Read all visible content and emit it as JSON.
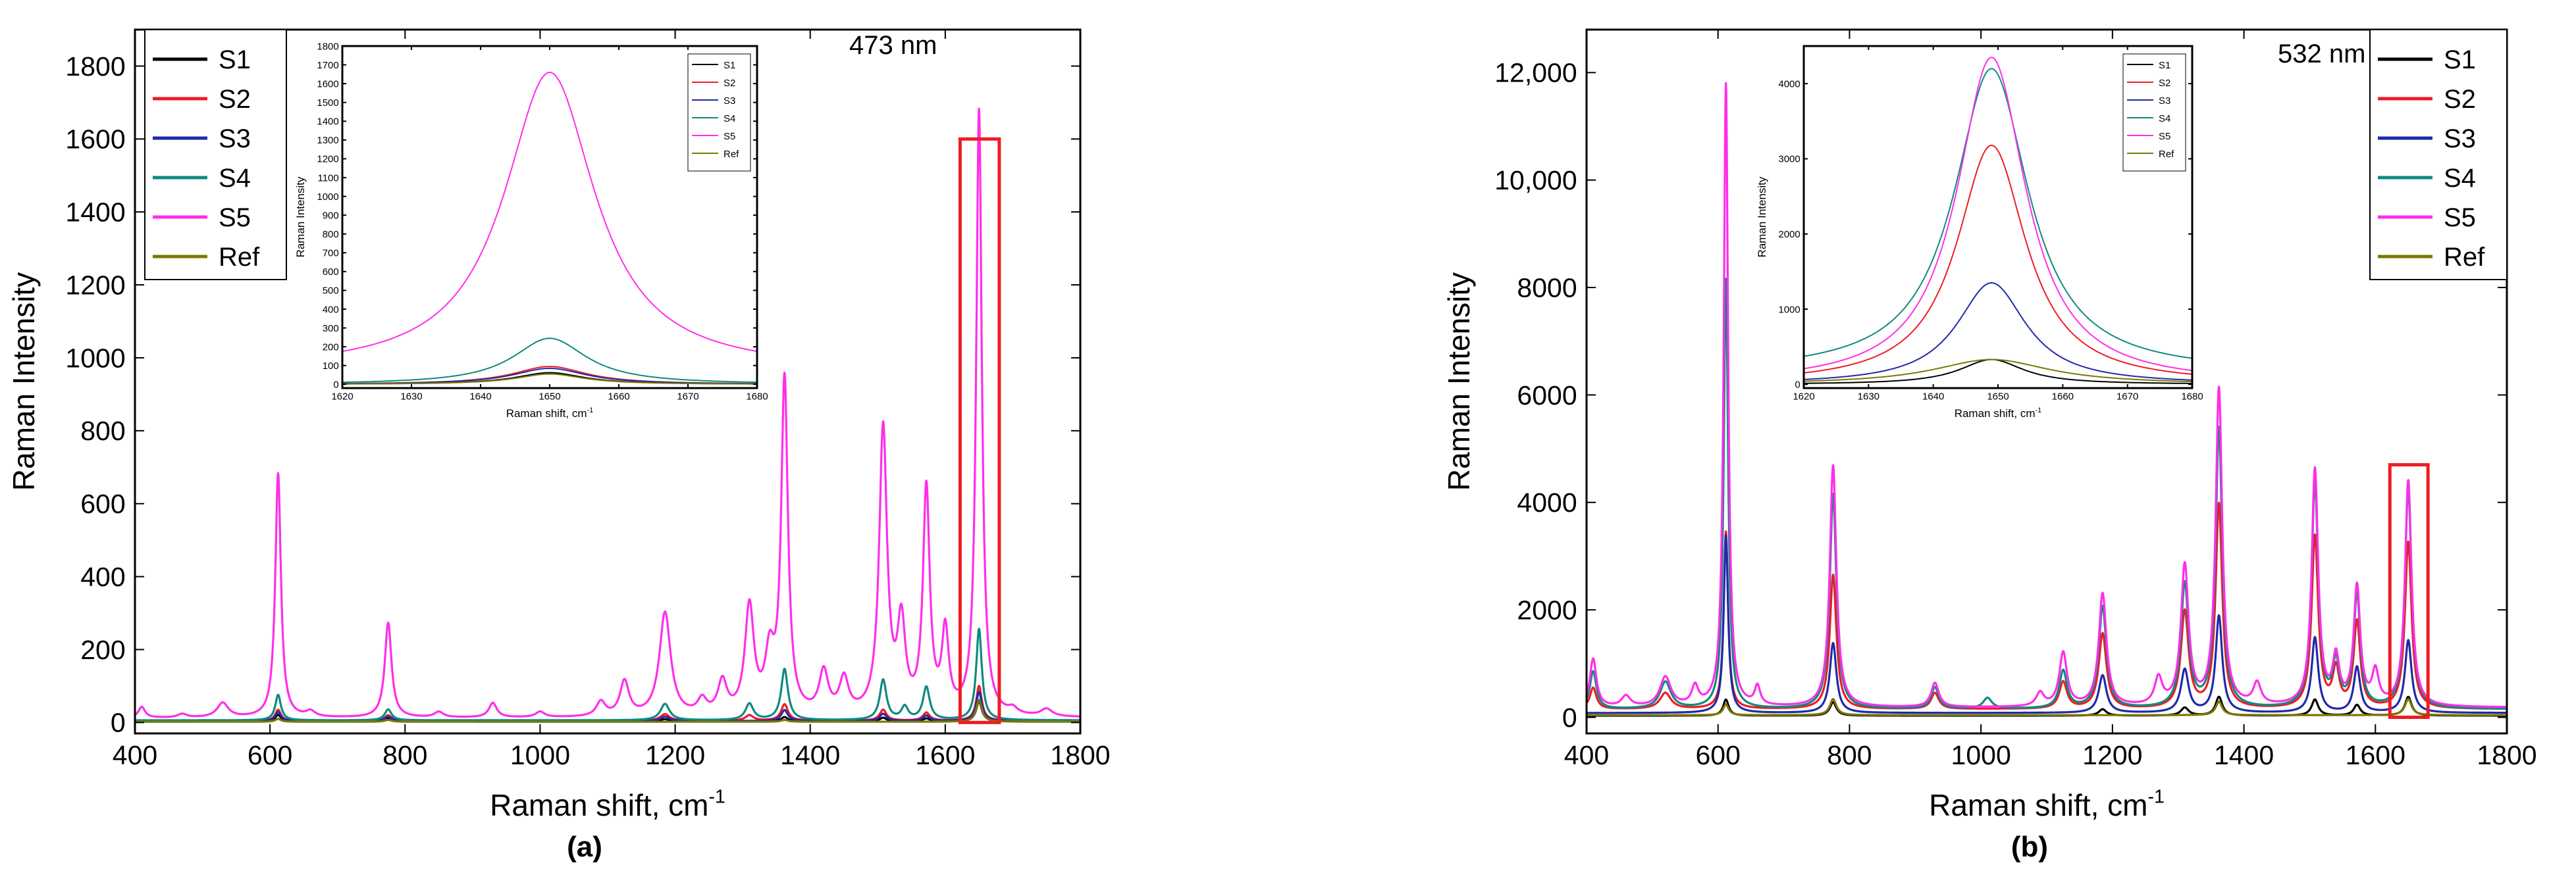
{
  "figure": {
    "captions": [
      "(a)",
      "(b)"
    ]
  },
  "chart_data": [
    {
      "id": "a",
      "type": "line",
      "annotation": "473 nm",
      "xlabel": "Raman shift, cm",
      "xlabel_sup": "-1",
      "ylabel": "Raman Intensity",
      "xlim": [
        400,
        1800
      ],
      "ylim": [
        -30,
        1900
      ],
      "xticks": [
        400,
        600,
        800,
        1000,
        1200,
        1400,
        1600,
        1800
      ],
      "yticks": [
        0,
        200,
        400,
        600,
        800,
        1000,
        1200,
        1400,
        1600,
        1800
      ],
      "ytick_labels": [
        "0",
        "200",
        "400",
        "600",
        "800",
        "1000",
        "1200",
        "1400",
        "1600",
        "1800"
      ],
      "legend_position": "top-left",
      "highlight_box": {
        "x": [
          1622,
          1680
        ],
        "y": [
          0,
          1600
        ],
        "color": "#ee1c24"
      },
      "series": [
        {
          "name": "S1",
          "color": "#000000",
          "baseline": 3,
          "peaks": [
            [
              612,
              18,
              5
            ],
            [
              775,
              8,
              6
            ],
            [
              1185,
              6,
              8
            ],
            [
              1362,
              12,
              6
            ],
            [
              1508,
              10,
              6
            ],
            [
              1572,
              8,
              6
            ],
            [
              1650,
              55,
              5
            ]
          ]
        },
        {
          "name": "S2",
          "color": "#ee1c24",
          "baseline": 5,
          "peaks": [
            [
              612,
              30,
              5
            ],
            [
              775,
              15,
              6
            ],
            [
              1185,
              18,
              8
            ],
            [
              1310,
              15,
              7
            ],
            [
              1362,
              45,
              6
            ],
            [
              1508,
              30,
              6
            ],
            [
              1572,
              22,
              6
            ],
            [
              1650,
              95,
              5
            ]
          ]
        },
        {
          "name": "S3",
          "color": "#1f2aa8",
          "baseline": 4,
          "peaks": [
            [
              612,
              25,
              5
            ],
            [
              775,
              12,
              6
            ],
            [
              1185,
              12,
              8
            ],
            [
              1362,
              30,
              6
            ],
            [
              1508,
              20,
              6
            ],
            [
              1572,
              15,
              6
            ],
            [
              1650,
              80,
              5
            ]
          ]
        },
        {
          "name": "S4",
          "color": "#0f8a80",
          "baseline": 6,
          "peaks": [
            [
              612,
              70,
              5
            ],
            [
              775,
              30,
              6
            ],
            [
              1185,
              45,
              8
            ],
            [
              1310,
              45,
              7
            ],
            [
              1362,
              140,
              6
            ],
            [
              1508,
              110,
              6
            ],
            [
              1540,
              35,
              6
            ],
            [
              1572,
              90,
              6
            ],
            [
              1650,
              250,
              5
            ]
          ]
        },
        {
          "name": "S5",
          "color": "#ff2eea",
          "baseline": 12,
          "peaks": [
            [
              410,
              30,
              6
            ],
            [
              470,
              10,
              8
            ],
            [
              530,
              40,
              10
            ],
            [
              612,
              670,
              5
            ],
            [
              660,
              15,
              8
            ],
            [
              775,
              260,
              6
            ],
            [
              850,
              15,
              8
            ],
            [
              930,
              40,
              7
            ],
            [
              1000,
              15,
              8
            ],
            [
              1090,
              40,
              8
            ],
            [
              1125,
              95,
              8
            ],
            [
              1185,
              285,
              10
            ],
            [
              1240,
              40,
              8
            ],
            [
              1270,
              90,
              8
            ],
            [
              1310,
              295,
              8
            ],
            [
              1340,
              150,
              8
            ],
            [
              1362,
              915,
              6
            ],
            [
              1420,
              115,
              8
            ],
            [
              1450,
              95,
              8
            ],
            [
              1508,
              785,
              7
            ],
            [
              1535,
              240,
              7
            ],
            [
              1572,
              615,
              6
            ],
            [
              1600,
              220,
              6
            ],
            [
              1650,
              1660,
              5
            ],
            [
              1700,
              15,
              8
            ],
            [
              1750,
              20,
              10
            ]
          ]
        },
        {
          "name": "Ref",
          "color": "#7c7800",
          "baseline": 2,
          "peaks": [
            [
              612,
              8,
              5
            ],
            [
              775,
              5,
              6
            ],
            [
              1362,
              5,
              6
            ],
            [
              1650,
              60,
              5
            ]
          ]
        }
      ],
      "inset": {
        "xlabel": "Raman shift, cm",
        "xlabel_sup": "-1",
        "ylabel": "Raman Intensity",
        "xlim": [
          1620,
          1680
        ],
        "ylim": [
          -20,
          1800
        ],
        "xticks": [
          1620,
          1630,
          1640,
          1650,
          1660,
          1670,
          1680
        ],
        "yticks": [
          0,
          100,
          200,
          300,
          400,
          500,
          600,
          700,
          800,
          900,
          1000,
          1100,
          1200,
          1300,
          1400,
          1500,
          1600,
          1700,
          1800
        ],
        "series": [
          {
            "name": "S1",
            "color": "#000000",
            "center": 1650,
            "amp": 62,
            "width": 6,
            "base": 0
          },
          {
            "name": "S2",
            "color": "#ee1c24",
            "center": 1650,
            "amp": 95,
            "width": 6.5,
            "base": 0
          },
          {
            "name": "S3",
            "color": "#1f2aa8",
            "center": 1650,
            "amp": 85,
            "width": 6.5,
            "base": 0
          },
          {
            "name": "S4",
            "color": "#0f8a80",
            "center": 1650,
            "amp": 245,
            "width": 6.5,
            "base": 0
          },
          {
            "name": "S5",
            "color": "#ff2eea",
            "center": 1650,
            "amp": 1590,
            "width": 8,
            "base": 70
          },
          {
            "name": "Ref",
            "color": "#7c7800",
            "center": 1650,
            "amp": 55,
            "width": 6,
            "base": 0
          }
        ]
      }
    },
    {
      "id": "b",
      "type": "line",
      "annotation": "532 nm",
      "xlabel": "Raman shift, cm",
      "xlabel_sup": "-1",
      "ylabel": "Raman Intensity",
      "xlim": [
        400,
        1800
      ],
      "ylim": [
        -300,
        12800
      ],
      "xticks": [
        400,
        600,
        800,
        1000,
        1200,
        1400,
        1600,
        1800
      ],
      "yticks": [
        0,
        2000,
        4000,
        6000,
        8000,
        10000,
        12000
      ],
      "ytick_labels": [
        "0",
        "2000",
        "4000",
        "6000",
        "8000",
        "10,000",
        "12,000"
      ],
      "legend_position": "top-right",
      "highlight_box": {
        "x": [
          1622,
          1680
        ],
        "y": [
          0,
          4700
        ],
        "color": "#ee1c24"
      },
      "series": [
        {
          "name": "S1",
          "color": "#000000",
          "baseline": 30,
          "peaks": [
            [
              612,
              300,
              5
            ],
            [
              775,
              250,
              6
            ],
            [
              1185,
              120,
              7
            ],
            [
              1310,
              150,
              7
            ],
            [
              1362,
              350,
              6
            ],
            [
              1508,
              300,
              6
            ],
            [
              1572,
              200,
              6
            ],
            [
              1650,
              350,
              6
            ]
          ]
        },
        {
          "name": "S2",
          "color": "#ee1c24",
          "baseline": 150,
          "peaks": [
            [
              410,
              400,
              6
            ],
            [
              520,
              300,
              10
            ],
            [
              612,
              3300,
              4
            ],
            [
              775,
              2500,
              6
            ],
            [
              930,
              300,
              7
            ],
            [
              1125,
              500,
              7
            ],
            [
              1185,
              1400,
              7
            ],
            [
              1310,
              1800,
              7
            ],
            [
              1362,
              3800,
              6
            ],
            [
              1508,
              3200,
              6
            ],
            [
              1540,
              700,
              6
            ],
            [
              1572,
              1600,
              6
            ],
            [
              1650,
              3100,
              6
            ]
          ]
        },
        {
          "name": "S3",
          "color": "#1f2aa8",
          "baseline": 80,
          "peaks": [
            [
              612,
              3300,
              4
            ],
            [
              775,
              1300,
              6
            ],
            [
              1185,
              700,
              7
            ],
            [
              1310,
              800,
              7
            ],
            [
              1362,
              1800,
              6
            ],
            [
              1508,
              1400,
              6
            ],
            [
              1572,
              850,
              6
            ],
            [
              1650,
              1350,
              6
            ]
          ]
        },
        {
          "name": "S4",
          "color": "#0f8a80",
          "baseline": 150,
          "peaks": [
            [
              410,
              700,
              6
            ],
            [
              520,
              500,
              10
            ],
            [
              612,
              8000,
              4
            ],
            [
              775,
              4000,
              6
            ],
            [
              930,
              400,
              7
            ],
            [
              1010,
              200,
              8
            ],
            [
              1125,
              700,
              7
            ],
            [
              1185,
              1900,
              7
            ],
            [
              1310,
              2300,
              7
            ],
            [
              1362,
              5200,
              6
            ],
            [
              1508,
              4200,
              6
            ],
            [
              1540,
              800,
              6
            ],
            [
              1572,
              2100,
              6
            ],
            [
              1650,
              4100,
              6
            ]
          ]
        },
        {
          "name": "S5",
          "color": "#ff2eea",
          "baseline": 180,
          "peaks": [
            [
              410,
              900,
              6
            ],
            [
              460,
              200,
              8
            ],
            [
              520,
              550,
              10
            ],
            [
              565,
              350,
              6
            ],
            [
              612,
              11600,
              4
            ],
            [
              660,
              350,
              5
            ],
            [
              775,
              4500,
              6
            ],
            [
              930,
              450,
              7
            ],
            [
              1090,
              250,
              7
            ],
            [
              1125,
              1000,
              7
            ],
            [
              1185,
              2100,
              7
            ],
            [
              1270,
              500,
              7
            ],
            [
              1310,
              2600,
              7
            ],
            [
              1362,
              5900,
              6
            ],
            [
              1420,
              400,
              7
            ],
            [
              1508,
              4400,
              6
            ],
            [
              1540,
              850,
              6
            ],
            [
              1572,
              2200,
              6
            ],
            [
              1600,
              600,
              6
            ],
            [
              1650,
              4200,
              6
            ]
          ]
        },
        {
          "name": "Ref",
          "color": "#7c7800",
          "baseline": 40,
          "peaks": [
            [
              612,
              200,
              5
            ],
            [
              775,
              300,
              6
            ],
            [
              1362,
              250,
              6
            ],
            [
              1650,
              300,
              6
            ]
          ]
        }
      ],
      "inset": {
        "xlabel": "Raman shift, cm",
        "xlabel_sup": "-1",
        "ylabel": "Raman Intensity",
        "xlim": [
          1620,
          1680
        ],
        "ylim": [
          -50,
          4500
        ],
        "xticks": [
          1620,
          1630,
          1640,
          1650,
          1660,
          1670,
          1680
        ],
        "yticks": [
          0,
          1000,
          2000,
          3000,
          4000
        ],
        "series": [
          {
            "name": "S1",
            "color": "#000000",
            "center": 1649,
            "amp": 330,
            "width": 6,
            "base": 0
          },
          {
            "name": "S2",
            "color": "#ee1c24",
            "center": 1649,
            "amp": 3180,
            "width": 6.5,
            "base": 0
          },
          {
            "name": "S3",
            "color": "#1f2aa8",
            "center": 1649,
            "amp": 1350,
            "width": 6.5,
            "base": 0
          },
          {
            "name": "S4",
            "color": "#0f8a80",
            "center": 1649,
            "amp": 4050,
            "width": 7,
            "base": 150
          },
          {
            "name": "S5",
            "color": "#ff2eea",
            "center": 1649,
            "amp": 4350,
            "width": 6.5,
            "base": 0
          },
          {
            "name": "Ref",
            "color": "#7c7800",
            "center": 1649,
            "amp": 330,
            "width": 11,
            "base": 0
          }
        ]
      }
    }
  ]
}
